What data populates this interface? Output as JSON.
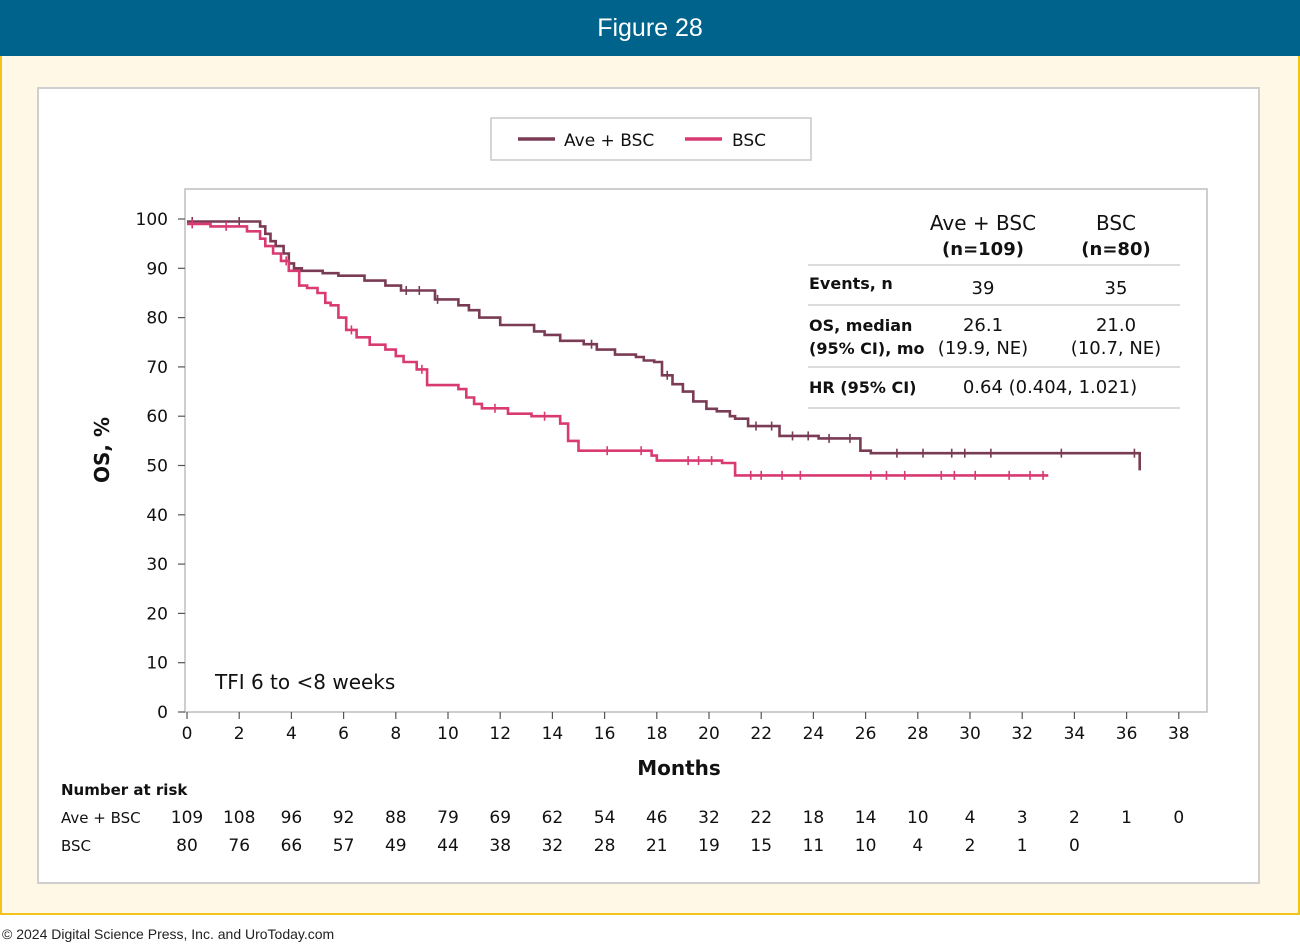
{
  "header": {
    "title": "Figure 28"
  },
  "footer": {
    "copyright": "© 2024 Digital Science Press, Inc. and UroToday.com"
  },
  "colors": {
    "header_bg": "#00638b",
    "panel_bg": "#fff8e7",
    "panel_border": "#f2c419",
    "ave_bsc": "#7a3b55",
    "bsc": "#d93a72"
  },
  "chart_data": {
    "type": "line",
    "subtype": "kaplan-meier",
    "title": "",
    "xlabel": "Months",
    "ylabel": "OS, %",
    "xlim": [
      0,
      38
    ],
    "ylim": [
      0,
      100
    ],
    "xticks": [
      0,
      2,
      4,
      6,
      8,
      10,
      12,
      14,
      16,
      18,
      20,
      22,
      24,
      26,
      28,
      30,
      32,
      34,
      36,
      38
    ],
    "yticks": [
      0,
      10,
      20,
      30,
      40,
      50,
      60,
      70,
      80,
      90,
      100
    ],
    "grid": false,
    "legend_position": "top-center",
    "annotation": "TFI 6 to <8 weeks",
    "series": [
      {
        "name": "Ave + BSC",
        "x": [
          0,
          2.6,
          2.8,
          3.0,
          3.2,
          3.4,
          3.7,
          3.9,
          4.1,
          4.4,
          5.2,
          5.8,
          6.8,
          7.6,
          8.2,
          9.5,
          10.0,
          10.4,
          10.8,
          11.2,
          12.0,
          13.3,
          13.7,
          14.3,
          15.2,
          15.7,
          16.4,
          17.2,
          17.5,
          17.9,
          18.2,
          18.6,
          19.0,
          19.4,
          19.9,
          20.3,
          20.8,
          21.0,
          21.5,
          22.7,
          23.9,
          24.2,
          25.8,
          26.2,
          36.5
        ],
        "y": [
          99.5,
          99.5,
          98.5,
          97.0,
          95.5,
          94.5,
          93.0,
          91.0,
          90.0,
          89.5,
          89.0,
          88.5,
          87.5,
          86.5,
          85.5,
          83.7,
          83.7,
          82.5,
          81.5,
          80.0,
          78.5,
          77.2,
          76.5,
          75.3,
          74.6,
          73.5,
          72.5,
          72.0,
          71.3,
          71.0,
          68.3,
          66.5,
          65.0,
          63.0,
          61.5,
          61.0,
          60.0,
          59.5,
          58.0,
          56.0,
          56.0,
          55.5,
          53.0,
          52.5,
          49.0
        ],
        "censored_x": [
          0.2,
          2.0,
          8.4,
          8.9,
          9.6,
          15.5,
          18.4,
          21.8,
          22.4,
          23.2,
          23.8,
          24.6,
          25.4,
          27.2,
          28.2,
          29.3,
          29.8,
          30.8,
          33.5,
          36.3
        ]
      },
      {
        "name": "BSC",
        "x": [
          0,
          0.9,
          2.3,
          2.8,
          3.0,
          3.3,
          3.6,
          3.9,
          4.3,
          4.6,
          5.0,
          5.3,
          5.5,
          5.8,
          6.1,
          6.5,
          7.0,
          7.6,
          8.0,
          8.3,
          8.8,
          9.2,
          10.4,
          10.7,
          11.0,
          11.3,
          12.3,
          13.2,
          14.3,
          14.6,
          15.0,
          16.0,
          17.0,
          17.8,
          18.0,
          20.5,
          21.0,
          21.2,
          28.0,
          33.0
        ],
        "y": [
          99.0,
          98.5,
          97.5,
          96.0,
          94.5,
          93.0,
          91.5,
          89.5,
          86.5,
          86.0,
          85.0,
          83.0,
          82.5,
          80.0,
          77.5,
          76.0,
          74.5,
          73.5,
          72.2,
          71.0,
          69.5,
          66.3,
          65.5,
          63.8,
          62.5,
          61.6,
          60.5,
          60.0,
          58.5,
          55.0,
          53.0,
          53.0,
          53.0,
          52.0,
          51.0,
          50.5,
          48.0,
          48.0,
          48.0,
          48.0
        ],
        "censored_x": [
          0.2,
          1.5,
          3.8,
          6.3,
          9.0,
          11.8,
          13.7,
          16.1,
          17.4,
          19.2,
          19.6,
          20.1,
          21.6,
          22.0,
          22.8,
          23.5,
          26.2,
          26.8,
          27.5,
          28.9,
          29.4,
          30.2,
          31.5,
          32.3,
          32.8
        ]
      }
    ],
    "stats_table": {
      "col_headers": [
        {
          "name": "Ave + BSC",
          "n": "(n=109)"
        },
        {
          "name": "BSC",
          "n": "(n=80)"
        }
      ],
      "rows": [
        {
          "label": "Events, n",
          "ave": "39",
          "bsc": "35"
        },
        {
          "label_line1": "OS, median",
          "label_line2": "(95% CI), mo",
          "ave_line1": "26.1",
          "ave_line2": "(19.9, NE)",
          "bsc_line1": "21.0",
          "bsc_line2": "(10.7, NE)"
        },
        {
          "label": "HR (95% CI)",
          "value": "0.64 (0.404, 1.021)"
        }
      ]
    },
    "risk_table": {
      "title": "Number at risk",
      "rows": [
        {
          "label": "Ave + BSC",
          "values": [
            "109",
            "108",
            "96",
            "92",
            "88",
            "79",
            "69",
            "62",
            "54",
            "46",
            "32",
            "22",
            "18",
            "14",
            "10",
            "4",
            "3",
            "2",
            "1",
            "0"
          ]
        },
        {
          "label": "BSC",
          "values": [
            "80",
            "76",
            "66",
            "57",
            "49",
            "44",
            "38",
            "32",
            "28",
            "21",
            "19",
            "15",
            "11",
            "10",
            "4",
            "2",
            "1",
            "0"
          ]
        }
      ]
    }
  }
}
